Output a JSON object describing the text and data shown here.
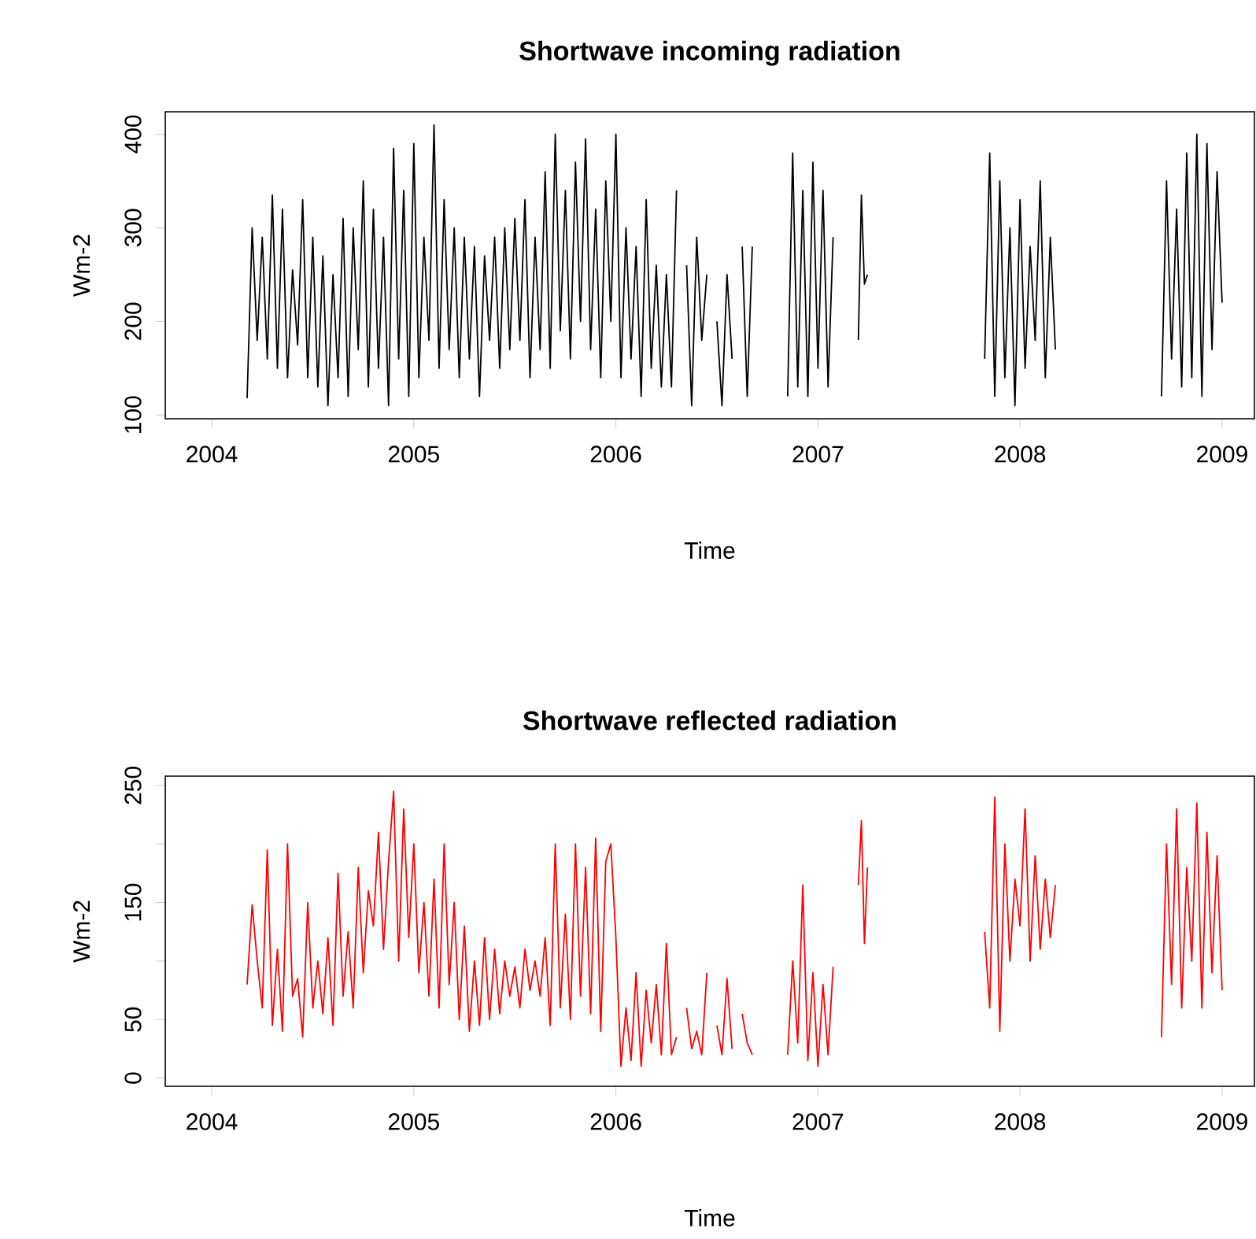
{
  "chart_data": [
    {
      "type": "line",
      "title": "Shortwave incoming radiation",
      "xlabel": "Time",
      "ylabel": "Wm-2",
      "x": [
        2004.175,
        2004.2,
        2004.225,
        2004.25,
        2004.275,
        2004.3,
        2004.325,
        2004.35,
        2004.375,
        2004.4,
        2004.425,
        2004.45,
        2004.475,
        2004.5,
        2004.525,
        2004.55,
        2004.575,
        2004.6,
        2004.625,
        2004.65,
        2004.675,
        2004.7,
        2004.725,
        2004.75,
        2004.775,
        2004.8,
        2004.825,
        2004.85,
        2004.875,
        2004.9,
        2004.925,
        2004.95,
        2004.975,
        2005.0,
        2005.025,
        2005.05,
        2005.075,
        2005.1,
        2005.125,
        2005.15,
        2005.175,
        2005.2,
        2005.225,
        2005.25,
        2005.275,
        2005.3,
        2005.325,
        2005.35,
        2005.375,
        2005.4,
        2005.425,
        2005.45,
        2005.475,
        2005.5,
        2005.525,
        2005.55,
        2005.575,
        2005.6,
        2005.625,
        2005.65,
        2005.675,
        2005.7,
        2005.725,
        2005.75,
        2005.775,
        2005.8,
        2005.825,
        2005.85,
        2005.875,
        2005.9,
        2005.925,
        2005.95,
        2005.975,
        2006.0,
        2006.025,
        2006.05,
        2006.075,
        2006.1,
        2006.125,
        2006.15,
        2006.175,
        2006.2,
        2006.225,
        2006.25,
        2006.275,
        2006.3,
        2006.325,
        2006.35,
        2006.375,
        2006.4,
        2006.425,
        2006.45,
        2006.475,
        2006.5,
        2006.525,
        2006.55,
        2006.575,
        2006.6,
        2006.625,
        2006.65,
        2006.675,
        2006.76,
        2006.85,
        2006.875,
        2006.9,
        2006.925,
        2006.95,
        2006.975,
        2007.0,
        2007.025,
        2007.05,
        2007.075,
        2007.14,
        2007.2,
        2007.215,
        2007.23,
        2007.245,
        2007.5,
        2007.825,
        2007.85,
        2007.875,
        2007.9,
        2007.925,
        2007.95,
        2007.975,
        2008.0,
        2008.025,
        2008.05,
        2008.075,
        2008.1,
        2008.125,
        2008.15,
        2008.175,
        2008.4,
        2008.7,
        2008.725,
        2008.75,
        2008.775,
        2008.8,
        2008.825,
        2008.85,
        2008.875,
        2008.9,
        2008.925,
        2008.95,
        2008.975,
        2009.0
      ],
      "series": [
        {
          "color": "#000000",
          "values": [
            118,
            300,
            180,
            290,
            160,
            335,
            150,
            320,
            140,
            255,
            175,
            330,
            140,
            290,
            130,
            270,
            110,
            250,
            140,
            310,
            120,
            300,
            170,
            350,
            130,
            320,
            150,
            290,
            110,
            385,
            160,
            340,
            120,
            390,
            140,
            290,
            180,
            410,
            150,
            330,
            170,
            300,
            140,
            290,
            160,
            280,
            120,
            270,
            180,
            290,
            150,
            300,
            170,
            310,
            180,
            330,
            140,
            290,
            170,
            360,
            150,
            400,
            190,
            340,
            160,
            370,
            200,
            395,
            170,
            320,
            140,
            350,
            200,
            400,
            140,
            300,
            160,
            280,
            120,
            330,
            150,
            260,
            130,
            250,
            130,
            340,
            null,
            260,
            110,
            290,
            180,
            250,
            null,
            200,
            110,
            250,
            160,
            null,
            280,
            120,
            280,
            null,
            120,
            380,
            130,
            340,
            120,
            370,
            150,
            340,
            130,
            290,
            null,
            180,
            335,
            240,
            250,
            null,
            160,
            380,
            120,
            350,
            140,
            300,
            110,
            330,
            150,
            280,
            180,
            350,
            140,
            290,
            170,
            null,
            120,
            350,
            160,
            320,
            130,
            380,
            140,
            400,
            120,
            390,
            170,
            360,
            220
          ]
        }
      ],
      "xlim": [
        2003.77,
        2009.16
      ],
      "ylim": [
        96,
        424
      ],
      "xticks": [
        2004,
        2005,
        2006,
        2007,
        2008,
        2009
      ],
      "yticks": [
        100,
        200,
        300,
        400
      ],
      "line_style": "solid"
    },
    {
      "type": "line",
      "title": "Shortwave reflected radiation",
      "xlabel": "Time",
      "ylabel": "Wm-2",
      "x": [
        2004.175,
        2004.2,
        2004.225,
        2004.25,
        2004.275,
        2004.3,
        2004.325,
        2004.35,
        2004.375,
        2004.4,
        2004.425,
        2004.45,
        2004.475,
        2004.5,
        2004.525,
        2004.55,
        2004.575,
        2004.6,
        2004.625,
        2004.65,
        2004.675,
        2004.7,
        2004.725,
        2004.75,
        2004.775,
        2004.8,
        2004.825,
        2004.85,
        2004.875,
        2004.9,
        2004.925,
        2004.95,
        2004.975,
        2005.0,
        2005.025,
        2005.05,
        2005.075,
        2005.1,
        2005.125,
        2005.15,
        2005.175,
        2005.2,
        2005.225,
        2005.25,
        2005.275,
        2005.3,
        2005.325,
        2005.35,
        2005.375,
        2005.4,
        2005.425,
        2005.45,
        2005.475,
        2005.5,
        2005.525,
        2005.55,
        2005.575,
        2005.6,
        2005.625,
        2005.65,
        2005.675,
        2005.7,
        2005.725,
        2005.75,
        2005.775,
        2005.8,
        2005.825,
        2005.85,
        2005.875,
        2005.9,
        2005.925,
        2005.95,
        2005.975,
        2006.0,
        2006.025,
        2006.05,
        2006.075,
        2006.1,
        2006.125,
        2006.15,
        2006.175,
        2006.2,
        2006.225,
        2006.25,
        2006.275,
        2006.3,
        2006.325,
        2006.35,
        2006.375,
        2006.4,
        2006.425,
        2006.45,
        2006.475,
        2006.5,
        2006.525,
        2006.55,
        2006.575,
        2006.6,
        2006.625,
        2006.65,
        2006.675,
        2006.76,
        2006.85,
        2006.875,
        2006.9,
        2006.925,
        2006.95,
        2006.975,
        2007.0,
        2007.025,
        2007.05,
        2007.075,
        2007.14,
        2007.2,
        2007.215,
        2007.23,
        2007.245,
        2007.5,
        2007.825,
        2007.85,
        2007.875,
        2007.9,
        2007.925,
        2007.95,
        2007.975,
        2008.0,
        2008.025,
        2008.05,
        2008.075,
        2008.1,
        2008.125,
        2008.15,
        2008.175,
        2008.4,
        2008.7,
        2008.725,
        2008.75,
        2008.775,
        2008.8,
        2008.825,
        2008.85,
        2008.875,
        2008.9,
        2008.925,
        2008.95,
        2008.975,
        2009.0
      ],
      "series": [
        {
          "color": "#ff0000",
          "values": [
            80,
            148,
            100,
            60,
            195,
            45,
            110,
            40,
            200,
            70,
            85,
            35,
            150,
            60,
            100,
            55,
            120,
            45,
            175,
            70,
            125,
            60,
            180,
            90,
            160,
            130,
            210,
            110,
            185,
            245,
            100,
            230,
            120,
            200,
            90,
            150,
            70,
            170,
            60,
            200,
            80,
            150,
            50,
            130,
            40,
            100,
            45,
            120,
            50,
            110,
            55,
            100,
            70,
            95,
            60,
            110,
            75,
            100,
            70,
            120,
            45,
            200,
            60,
            140,
            50,
            200,
            70,
            180,
            55,
            205,
            40,
            185,
            200,
            120,
            10,
            60,
            15,
            90,
            10,
            75,
            30,
            80,
            20,
            115,
            20,
            35,
            null,
            60,
            25,
            40,
            20,
            90,
            null,
            45,
            20,
            85,
            25,
            null,
            55,
            30,
            20,
            null,
            20,
            100,
            30,
            165,
            15,
            90,
            10,
            80,
            20,
            95,
            null,
            165,
            220,
            115,
            180,
            null,
            125,
            60,
            240,
            40,
            200,
            100,
            170,
            130,
            230,
            100,
            190,
            110,
            170,
            120,
            165,
            null,
            35,
            200,
            80,
            230,
            60,
            180,
            100,
            235,
            60,
            210,
            90,
            190,
            75
          ]
        }
      ],
      "xlim": [
        2003.77,
        2009.16
      ],
      "ylim": [
        -7,
        258
      ],
      "xticks": [
        2004,
        2005,
        2006,
        2007,
        2008,
        2009
      ],
      "yticks": [
        0,
        50,
        {
          "value": 100,
          "label": null
        },
        150,
        {
          "value": 200,
          "label": null
        },
        250
      ],
      "line_style": "solid"
    }
  ]
}
